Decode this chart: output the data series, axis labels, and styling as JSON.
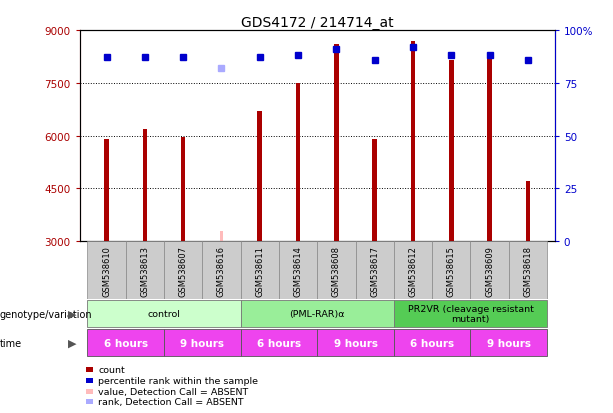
{
  "title": "GDS4172 / 214714_at",
  "samples": [
    "GSM538610",
    "GSM538613",
    "GSM538607",
    "GSM538616",
    "GSM538611",
    "GSM538614",
    "GSM538608",
    "GSM538617",
    "GSM538612",
    "GSM538615",
    "GSM538609",
    "GSM538618"
  ],
  "bar_values": [
    5900,
    6200,
    5950,
    null,
    6700,
    7500,
    8600,
    5900,
    8700,
    8150,
    8200,
    4700
  ],
  "absent_bar_value": 3300,
  "absent_bar_index": 3,
  "percentile_values": [
    87,
    87,
    87,
    null,
    87,
    88,
    91,
    86,
    92,
    88,
    88,
    86
  ],
  "absent_percentile_value": 82,
  "absent_percentile_index": 3,
  "bar_color": "#aa0000",
  "absent_bar_color": "#ffbbbb",
  "dot_color": "#0000cc",
  "absent_dot_color": "#aaaaff",
  "ylim": [
    3000,
    9000
  ],
  "yticks": [
    3000,
    4500,
    6000,
    7500,
    9000
  ],
  "ytick_labels": [
    "3000",
    "4500",
    "6000",
    "7500",
    "9000"
  ],
  "y2lim": [
    0,
    100
  ],
  "y2ticks": [
    0,
    25,
    50,
    75,
    100
  ],
  "y2tick_labels": [
    "0",
    "25",
    "50",
    "75",
    "100%"
  ],
  "genotype_groups": [
    {
      "label": "control",
      "color": "#ccffcc",
      "start": 0,
      "end": 4
    },
    {
      "label": "(PML-RAR)α",
      "color": "#99ee99",
      "start": 4,
      "end": 8
    },
    {
      "label": "PR2VR (cleavage resistant\nmutant)",
      "color": "#55cc55",
      "start": 8,
      "end": 12
    }
  ],
  "time_groups": [
    {
      "label": "6 hours",
      "color": "#ee44ee",
      "start": 0,
      "end": 2
    },
    {
      "label": "9 hours",
      "color": "#ee44ee",
      "start": 2,
      "end": 4
    },
    {
      "label": "6 hours",
      "color": "#ee44ee",
      "start": 4,
      "end": 6
    },
    {
      "label": "9 hours",
      "color": "#ee44ee",
      "start": 6,
      "end": 8
    },
    {
      "label": "6 hours",
      "color": "#ee44ee",
      "start": 8,
      "end": 10
    },
    {
      "label": "9 hours",
      "color": "#ee44ee",
      "start": 10,
      "end": 12
    }
  ],
  "legend_items": [
    {
      "label": "count",
      "color": "#aa0000"
    },
    {
      "label": "percentile rank within the sample",
      "color": "#0000cc"
    },
    {
      "label": "value, Detection Call = ABSENT",
      "color": "#ffbbbb"
    },
    {
      "label": "rank, Detection Call = ABSENT",
      "color": "#aaaaff"
    }
  ],
  "label_area_color": "#cccccc",
  "genotype_label": "genotype/variation",
  "time_label": "time",
  "bar_width": 0.12
}
